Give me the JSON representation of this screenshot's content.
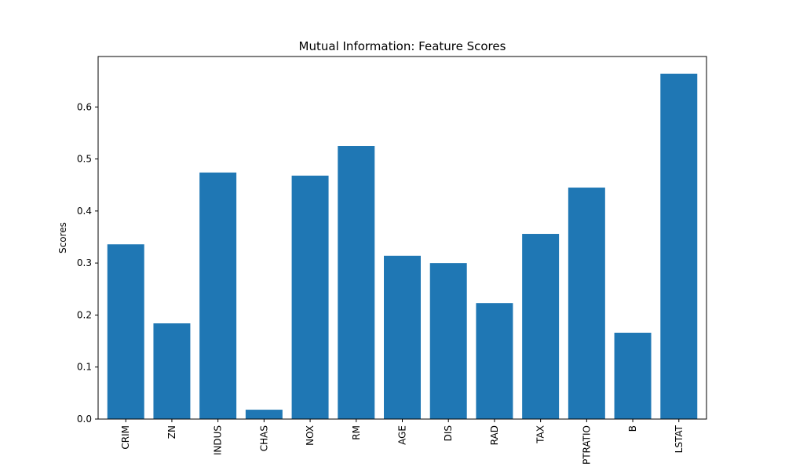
{
  "chart_data": {
    "type": "bar",
    "title": "Mutual Information: Feature Scores",
    "xlabel": "",
    "ylabel": "Scores",
    "categories": [
      "CRIM",
      "ZN",
      "INDUS",
      "CHAS",
      "NOX",
      "RM",
      "AGE",
      "DIS",
      "RAD",
      "TAX",
      "PTRATIO",
      "B",
      "LSTAT"
    ],
    "values": [
      0.336,
      0.184,
      0.474,
      0.018,
      0.468,
      0.525,
      0.314,
      0.3,
      0.223,
      0.356,
      0.445,
      0.166,
      0.664
    ],
    "ylim": [
      0,
      0.697
    ],
    "yticks": [
      0.0,
      0.1,
      0.2,
      0.3,
      0.4,
      0.5,
      0.6
    ],
    "ytick_labels": [
      "0.0",
      "0.1",
      "0.2",
      "0.3",
      "0.4",
      "0.5",
      "0.6"
    ],
    "bar_color": "#1f77b4",
    "grid": false,
    "legend": "none"
  }
}
